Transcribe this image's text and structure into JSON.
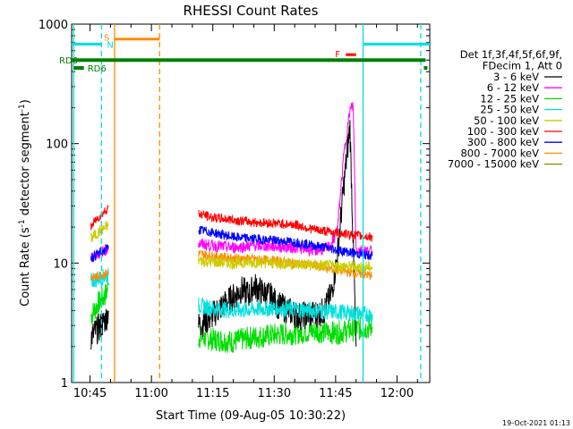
{
  "chart_data": {
    "type": "line",
    "title": "RHESSI Count Rates",
    "xlabel": "Start Time (09-Aug-05 10:30:22)",
    "ylabel_main": "Count Rate (s",
    "ylabel_exp1": "-1",
    "ylabel_mid": " detector segment",
    "ylabel_exp2": "-1",
    "ylabel_close": ")",
    "y_scale": "log",
    "ylim": [
      1,
      1000
    ],
    "xlim_minutes": [
      10.5,
      98.0
    ],
    "x_ticks": [
      {
        "m": 15,
        "label": "10:45"
      },
      {
        "m": 30,
        "label": "11:00"
      },
      {
        "m": 45,
        "label": "11:15"
      },
      {
        "m": 60,
        "label": "11:30"
      },
      {
        "m": 75,
        "label": "11:45"
      },
      {
        "m": 90,
        "label": "12:00"
      }
    ],
    "y_ticks": [
      {
        "v": 1,
        "label": "1"
      },
      {
        "v": 10,
        "label": "10"
      },
      {
        "v": 100,
        "label": "100"
      },
      {
        "v": 1000,
        "label": "1000"
      }
    ],
    "legend_header": [
      "Det 1f,3f,4f,5f,6f,9f,",
      "FDecim 1, Att 0"
    ],
    "legend_position": "right",
    "timestamp": "19-Oct-2021 01:13",
    "series": [
      {
        "name": "3 - 6 keV",
        "color": "#000000",
        "segments": [
          {
            "x": [
              15.2,
              16,
              17,
              18,
              19,
              19.5
            ],
            "y": [
              2.4,
              2.6,
              2.8,
              3.1,
              3.5,
              4.0
            ]
          },
          {
            "x": [
              41.5,
              44,
              47,
              50,
              52,
              54,
              55,
              57,
              59,
              61,
              63,
              66,
              69,
              72,
              74,
              75.5,
              77,
              78.5,
              80
            ],
            "y": [
              3.0,
              3.4,
              4.3,
              5.2,
              6.0,
              5.4,
              6.5,
              5.7,
              5.3,
              4.4,
              4.1,
              3.6,
              3.7,
              3.9,
              5.5,
              12.0,
              45.0,
              140.0,
              2.0
            ]
          }
        ]
      },
      {
        "name": "6 - 12 keV",
        "color": "#ff00ff",
        "segments": [
          {
            "x": [
              15.2,
              16,
              17,
              18,
              19,
              19.5
            ],
            "y": [
              11.0,
              11.5,
              12.0,
              12.5,
              13.0,
              13.5
            ]
          },
          {
            "x": [
              41.5,
              45,
              50,
              55,
              60,
              65,
              70,
              72,
              74,
              75.5,
              77,
              78.5,
              79.3,
              80,
              84
            ],
            "y": [
              14.5,
              14.0,
              13.5,
              14.0,
              13.8,
              13.5,
              12.8,
              13.0,
              14.0,
              20.0,
              80.0,
              190.0,
              210.0,
              13.0,
              12.5
            ]
          }
        ]
      },
      {
        "name": "12 - 25 keV",
        "color": "#00dd00",
        "segments": [
          {
            "x": [
              15.2,
              16,
              17,
              18,
              19,
              19.5
            ],
            "y": [
              3.6,
              4.0,
              4.6,
              5.0,
              5.6,
              6.5
            ]
          },
          {
            "x": [
              41.5,
              45,
              50,
              55,
              60,
              65,
              70,
              75,
              80,
              84
            ],
            "y": [
              2.4,
              2.3,
              2.2,
              2.4,
              2.5,
              2.6,
              2.7,
              2.6,
              2.8,
              2.9
            ]
          }
        ]
      },
      {
        "name": "25 - 50 keV",
        "color": "#00e0e0",
        "segments": [
          {
            "x": [
              15.2,
              16,
              17,
              18,
              19,
              19.5
            ],
            "y": [
              7.0,
              7.2,
              7.4,
              7.6,
              7.8,
              8.0
            ]
          },
          {
            "x": [
              41.5,
              45,
              50,
              55,
              60,
              65,
              70,
              75,
              80,
              84
            ],
            "y": [
              4.4,
              4.2,
              4.0,
              4.1,
              4.2,
              4.1,
              4.0,
              3.9,
              3.8,
              3.7
            ]
          }
        ]
      },
      {
        "name": "50 - 100 keV",
        "color": "#cccc00",
        "segments": [
          {
            "x": [
              15.2,
              16,
              17,
              18,
              19,
              19.5
            ],
            "y": [
              16.0,
              17.0,
              18.0,
              19.0,
              20.0,
              21.0
            ]
          },
          {
            "x": [
              41.5,
              45,
              50,
              55,
              60,
              65,
              70,
              75,
              80,
              84
            ],
            "y": [
              10.5,
              10.2,
              10.0,
              10.2,
              10.0,
              9.8,
              9.6,
              9.4,
              9.3,
              9.2
            ]
          }
        ]
      },
      {
        "name": "100 - 300 keV",
        "color": "#ff0000",
        "segments": [
          {
            "x": [
              15.2,
              16,
              17,
              18,
              19,
              19.5
            ],
            "y": [
              20.0,
              22.0,
              24.0,
              26.0,
              28.0,
              30.0
            ]
          },
          {
            "x": [
              41.5,
              45,
              50,
              55,
              60,
              65,
              70,
              75,
              80,
              84
            ],
            "y": [
              26.0,
              24.0,
              23.0,
              22.0,
              21.5,
              21.0,
              19.0,
              18.0,
              17.0,
              16.5
            ]
          }
        ]
      },
      {
        "name": "300 - 800 keV",
        "color": "#0000ff",
        "segments": [
          {
            "x": [
              15.2,
              16,
              17,
              18,
              19,
              19.5
            ],
            "y": [
              11.0,
              11.5,
              12.0,
              12.5,
              13.0,
              13.5
            ]
          },
          {
            "x": [
              41.5,
              45,
              50,
              55,
              60,
              65,
              70,
              75,
              80,
              84
            ],
            "y": [
              19.0,
              18.0,
              16.5,
              16.0,
              15.5,
              15.0,
              14.0,
              13.0,
              12.0,
              11.5
            ]
          }
        ]
      },
      {
        "name": "800 - 7000 keV",
        "color": "#ff8c00",
        "segments": [
          {
            "x": [
              15.2,
              16,
              17,
              18,
              19,
              19.5
            ],
            "y": [
              7.5,
              7.6,
              7.8,
              8.0,
              8.2,
              8.4
            ]
          },
          {
            "x": [
              41.5,
              45,
              50,
              55,
              60,
              65,
              70,
              75,
              80,
              84
            ],
            "y": [
              12.0,
              11.5,
              11.0,
              10.8,
              10.5,
              10.0,
              9.5,
              8.8,
              8.2,
              7.8
            ]
          }
        ]
      },
      {
        "name": "7000 - 15000 keV",
        "color": "#8b8b00",
        "segments": []
      }
    ],
    "annotations": {
      "rd6_line": {
        "label": "RD6",
        "color": "#008000",
        "y": 500,
        "x_start": 10.5,
        "x_end": 97.0,
        "tick_y": 430,
        "tick_x_start": 11.0,
        "tick_x_end": 13.5
      },
      "saa_bar": {
        "label": "S",
        "color": "#ff8c00",
        "y": 750,
        "x_start": 21.0,
        "x_end": 32.0
      },
      "night_bar": {
        "label": "N",
        "color": "#00e0e0",
        "y": 680,
        "x_start": 10.5,
        "x_end": 17.8,
        "x_start2": 81.7,
        "x_end2": 98.0
      },
      "flare_bar": {
        "label": "F",
        "color": "#ff0000",
        "y": 555,
        "x_start": 77.5,
        "x_end": 80.0
      },
      "vlines": [
        {
          "x": 11.0,
          "color": "#00e0e0",
          "dashed": false
        },
        {
          "x": 17.8,
          "color": "#00e0e0",
          "dashed": true
        },
        {
          "x": 21.0,
          "color": "#ff8c00",
          "dashed": false
        },
        {
          "x": 32.0,
          "color": "#ff8c00",
          "dashed": true
        },
        {
          "x": 81.7,
          "color": "#00e0e0",
          "dashed": false
        },
        {
          "x": 95.8,
          "color": "#00e0e0",
          "dashed": true
        }
      ]
    }
  }
}
